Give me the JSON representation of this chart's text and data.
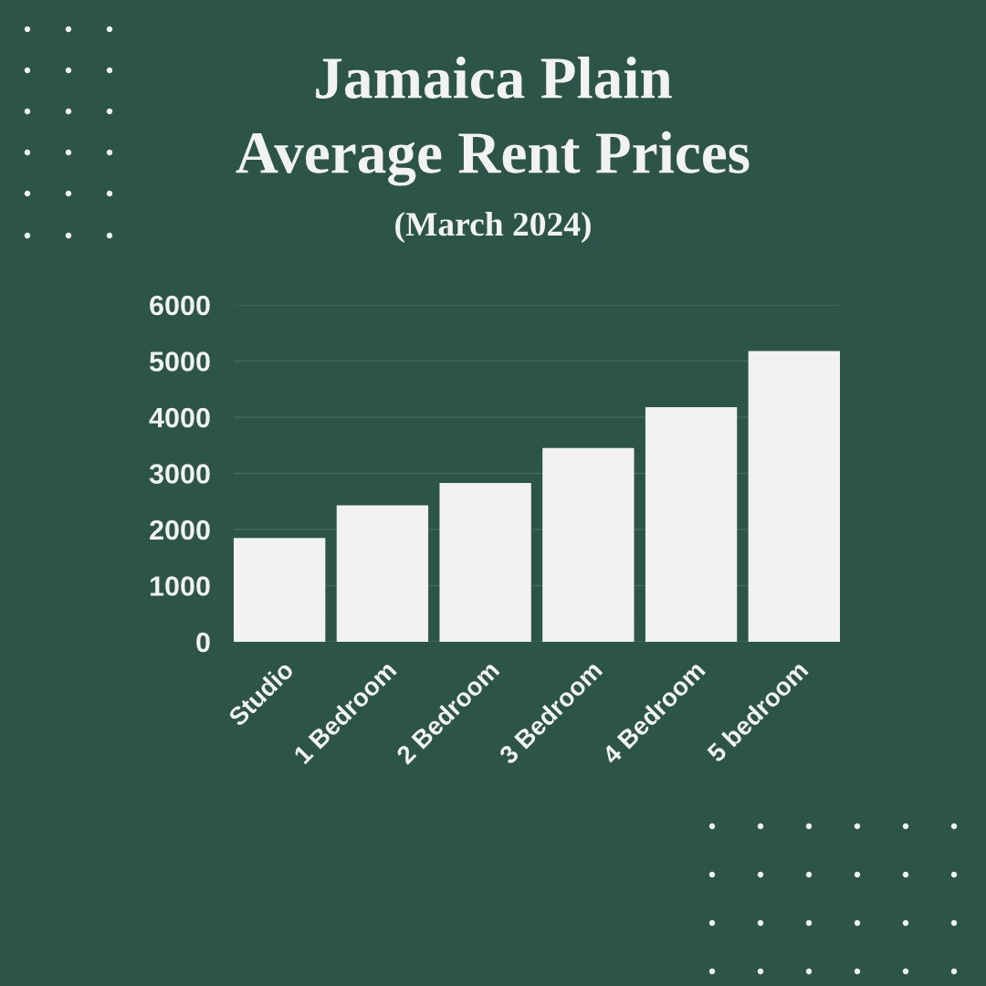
{
  "chart_data": {
    "type": "bar",
    "title": "Jamaica Plain\nAverage Rent Prices",
    "subtitle": "(March 2024)",
    "categories": [
      "Studio",
      "1 Bedroom",
      "2 Bedroom",
      "3 Bedroom",
      "4 Bedroom",
      "5 bedroom"
    ],
    "values": [
      1850,
      2430,
      2830,
      3450,
      4180,
      5180
    ],
    "color": "#f2f2f2",
    "ylim": [
      0,
      6000
    ],
    "yticks": [
      0,
      1000,
      2000,
      3000,
      4000,
      5000,
      6000
    ],
    "grid": "y"
  }
}
